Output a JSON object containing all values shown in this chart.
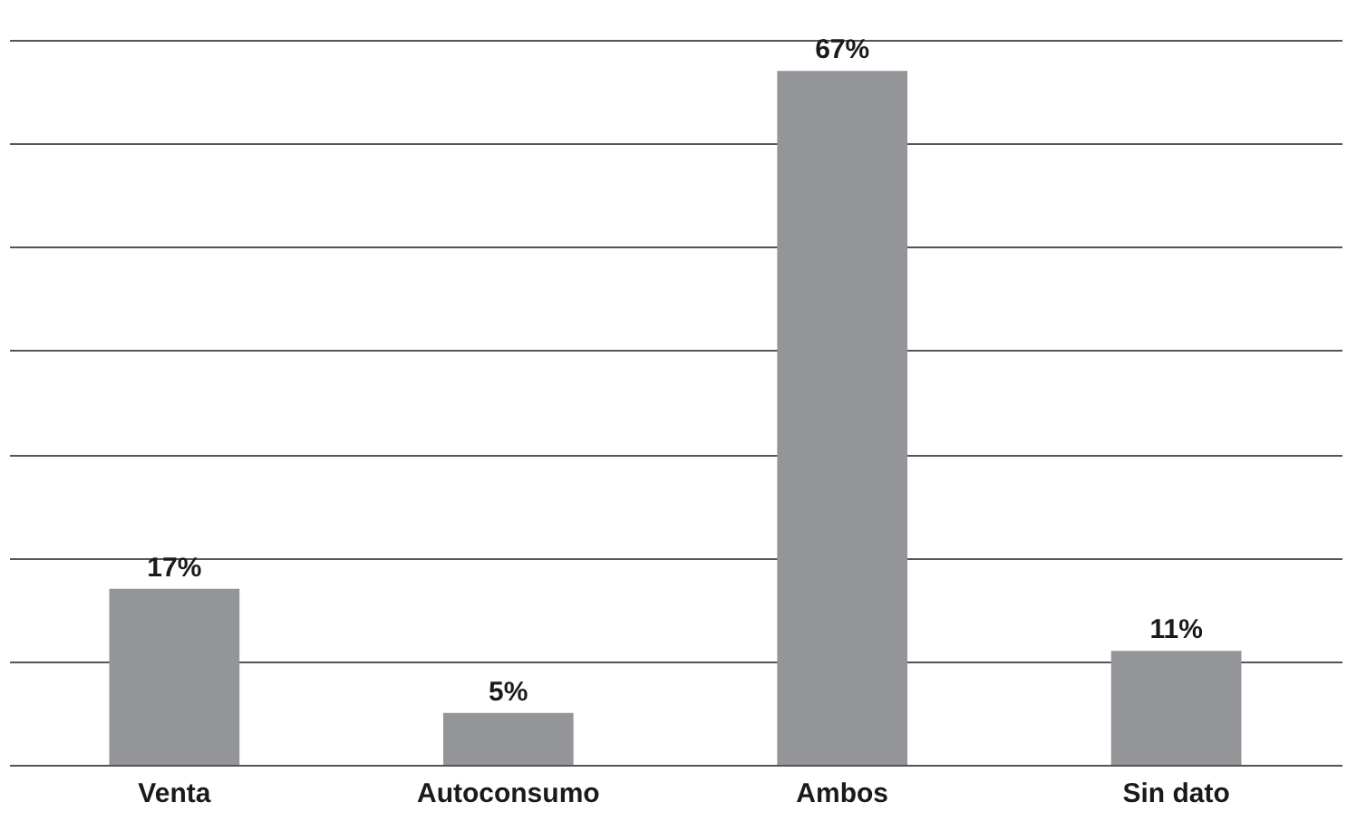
{
  "chart_data": {
    "type": "bar",
    "categories": [
      "Venta",
      "Autoconsumo",
      "Ambos",
      "Sin dato"
    ],
    "values": [
      17,
      5,
      67,
      11
    ],
    "color": "#939598",
    "value_labels": [
      "17%",
      "5%",
      "67%",
      "11%"
    ],
    "ylim": [
      0,
      70
    ],
    "yticks": [
      {
        "value": 0,
        "label": null
      },
      {
        "value": 10,
        "label": null
      },
      {
        "value": 20,
        "label": null
      },
      {
        "value": 30,
        "label": null
      },
      {
        "value": 40,
        "label": null
      },
      {
        "value": 50,
        "label": null
      },
      {
        "value": 60,
        "label": null
      },
      {
        "value": 70,
        "label": null
      }
    ],
    "grid": "y",
    "tick_labels": "x"
  }
}
